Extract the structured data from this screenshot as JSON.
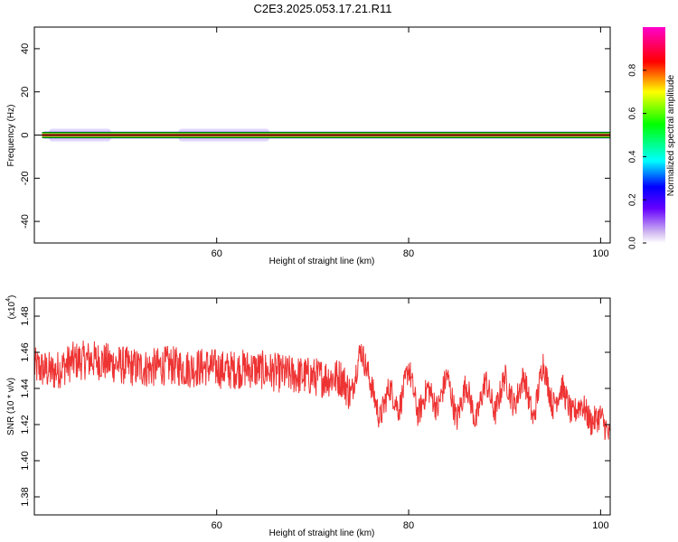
{
  "title": "C2E3.2025.053.17.21.R11",
  "chart_data": [
    {
      "type": "heatmap",
      "xlabel": "Height of straight line (km)",
      "ylabel": "Frequency (Hz)",
      "xlim": [
        41,
        101
      ],
      "ylim": [
        -50,
        50
      ],
      "xticks": [
        60,
        80,
        100
      ],
      "yticks": [
        -40,
        -20,
        0,
        20,
        40
      ],
      "colorbar": {
        "label": "Normalized spectral amplitude",
        "ticks": [
          0.0,
          0.2,
          0.4,
          0.6,
          0.8
        ],
        "range": [
          0,
          1
        ]
      },
      "band_center_hz": 0
    },
    {
      "type": "line",
      "xlabel": "Height of straight line (km)",
      "ylabel": "SNR (10 * v/v)",
      "multiplier_label": "(x10",
      "multiplier_exp": "4",
      "multiplier_close": ")",
      "xlim": [
        41,
        101
      ],
      "ylim": [
        1.37,
        1.49
      ],
      "xticks": [
        60,
        80,
        100
      ],
      "yticks": [
        1.38,
        1.4,
        1.42,
        1.44,
        1.46,
        1.48
      ],
      "color": "#ee3333",
      "series": [
        {
          "x": [
            41,
            43,
            45,
            47,
            49,
            51,
            53,
            55,
            57,
            59,
            61,
            63,
            65,
            67,
            69,
            71,
            73,
            74,
            75,
            76,
            77,
            78,
            79,
            80,
            81,
            82,
            83,
            84,
            85,
            86,
            87,
            88,
            89,
            90,
            91,
            92,
            93,
            94,
            95,
            96,
            97,
            98,
            99,
            100,
            101
          ],
          "values": [
            1.452,
            1.449,
            1.455,
            1.456,
            1.454,
            1.452,
            1.451,
            1.453,
            1.451,
            1.452,
            1.45,
            1.451,
            1.45,
            1.448,
            1.447,
            1.446,
            1.446,
            1.436,
            1.462,
            1.444,
            1.423,
            1.441,
            1.428,
            1.452,
            1.425,
            1.441,
            1.428,
            1.448,
            1.422,
            1.443,
            1.421,
            1.445,
            1.426,
            1.447,
            1.43,
            1.447,
            1.422,
            1.455,
            1.43,
            1.441,
            1.425,
            1.432,
            1.421,
            1.425,
            1.412
          ]
        }
      ]
    }
  ]
}
